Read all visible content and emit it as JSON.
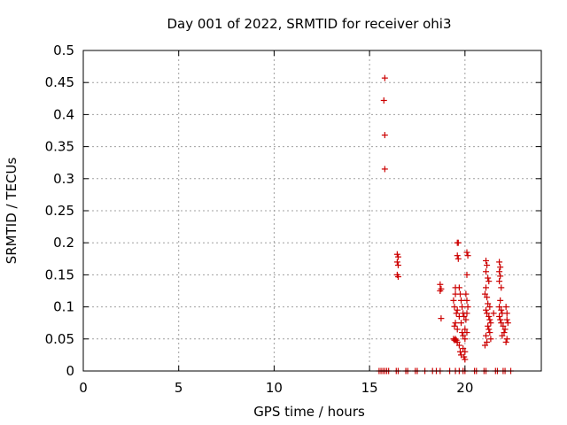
{
  "chart_data": {
    "type": "scatter",
    "title": "Day 001 of 2022, SRMTID for receiver ohi3",
    "xlabel": "GPS time / hours",
    "ylabel": "SRMTID / TECUs",
    "xlim": [
      0,
      24
    ],
    "ylim": [
      0,
      0.5
    ],
    "xticks": [
      0,
      5,
      10,
      15,
      20
    ],
    "xtick_labels": [
      "0",
      "5",
      "10",
      "15",
      "20"
    ],
    "yticks": [
      0,
      0.05,
      0.1,
      0.15,
      0.2,
      0.25,
      0.3,
      0.35,
      0.4,
      0.45,
      0.5
    ],
    "ytick_labels": [
      "0",
      "0.05",
      "0.1",
      "0.15",
      "0.2",
      "0.25",
      "0.3",
      "0.35",
      "0.4",
      "0.45",
      "0.5"
    ],
    "grid": true,
    "marker": "+",
    "color": "#cc0000",
    "series": [
      {
        "name": "SRMTID",
        "points": [
          [
            15.8,
            0.457
          ],
          [
            15.75,
            0.422
          ],
          [
            15.8,
            0.368
          ],
          [
            15.8,
            0.315
          ],
          [
            16.45,
            0.182
          ],
          [
            16.5,
            0.178
          ],
          [
            16.45,
            0.17
          ],
          [
            16.5,
            0.165
          ],
          [
            16.45,
            0.15
          ],
          [
            16.5,
            0.147
          ],
          [
            18.7,
            0.135
          ],
          [
            18.75,
            0.128
          ],
          [
            18.7,
            0.125
          ],
          [
            18.75,
            0.082
          ],
          [
            19.5,
            0.13
          ],
          [
            19.6,
            0.2
          ],
          [
            19.65,
            0.2
          ],
          [
            19.6,
            0.18
          ],
          [
            19.65,
            0.175
          ],
          [
            19.5,
            0.12
          ],
          [
            19.4,
            0.11
          ],
          [
            19.45,
            0.1
          ],
          [
            19.55,
            0.09
          ],
          [
            19.5,
            0.075
          ],
          [
            19.45,
            0.07
          ],
          [
            19.6,
            0.065
          ],
          [
            19.5,
            0.05
          ],
          [
            19.55,
            0.048
          ],
          [
            19.6,
            0.045
          ],
          [
            19.7,
            0.04
          ],
          [
            19.75,
            0.03
          ],
          [
            19.8,
            0.025
          ],
          [
            19.7,
            0.13
          ],
          [
            19.75,
            0.12
          ],
          [
            19.8,
            0.11
          ],
          [
            19.85,
            0.1
          ],
          [
            19.9,
            0.09
          ],
          [
            19.95,
            0.085
          ],
          [
            19.85,
            0.06
          ],
          [
            19.9,
            0.055
          ],
          [
            20.0,
            0.05
          ],
          [
            20.0,
            0.018
          ],
          [
            19.95,
            0.022
          ],
          [
            20.1,
            0.185
          ],
          [
            20.15,
            0.18
          ],
          [
            20.1,
            0.15
          ],
          [
            20.05,
            0.12
          ],
          [
            20.1,
            0.11
          ],
          [
            20.15,
            0.1
          ],
          [
            20.1,
            0.09
          ],
          [
            20.05,
            0.08
          ],
          [
            20.0,
            0.065
          ],
          [
            20.1,
            0.06
          ],
          [
            19.9,
            0.035
          ],
          [
            20.0,
            0.03
          ],
          [
            19.4,
            0.05
          ],
          [
            19.45,
            0.048
          ],
          [
            19.6,
            0.095
          ],
          [
            19.7,
            0.085
          ],
          [
            19.8,
            0.075
          ],
          [
            21.1,
            0.172
          ],
          [
            21.15,
            0.165
          ],
          [
            21.1,
            0.155
          ],
          [
            21.2,
            0.145
          ],
          [
            21.25,
            0.14
          ],
          [
            21.1,
            0.13
          ],
          [
            21.05,
            0.12
          ],
          [
            21.15,
            0.115
          ],
          [
            21.2,
            0.105
          ],
          [
            21.3,
            0.1
          ],
          [
            21.1,
            0.095
          ],
          [
            21.15,
            0.09
          ],
          [
            21.25,
            0.085
          ],
          [
            21.3,
            0.08
          ],
          [
            21.35,
            0.075
          ],
          [
            21.2,
            0.07
          ],
          [
            21.25,
            0.065
          ],
          [
            21.3,
            0.06
          ],
          [
            21.1,
            0.055
          ],
          [
            21.15,
            0.045
          ],
          [
            21.05,
            0.04
          ],
          [
            21.35,
            0.05
          ],
          [
            21.5,
            0.09
          ],
          [
            21.8,
            0.17
          ],
          [
            21.85,
            0.162
          ],
          [
            21.8,
            0.155
          ],
          [
            21.85,
            0.148
          ],
          [
            21.8,
            0.14
          ],
          [
            21.9,
            0.13
          ],
          [
            21.85,
            0.11
          ],
          [
            21.8,
            0.1
          ],
          [
            21.9,
            0.095
          ],
          [
            21.95,
            0.09
          ],
          [
            21.8,
            0.085
          ],
          [
            21.85,
            0.08
          ],
          [
            21.9,
            0.075
          ],
          [
            22.0,
            0.07
          ],
          [
            22.1,
            0.065
          ],
          [
            22.05,
            0.06
          ],
          [
            21.95,
            0.055
          ],
          [
            22.2,
            0.09
          ],
          [
            22.15,
            0.1
          ],
          [
            22.2,
            0.08
          ],
          [
            22.25,
            0.075
          ],
          [
            22.2,
            0.05
          ],
          [
            22.15,
            0.045
          ],
          [
            15.5,
            0.0
          ],
          [
            15.6,
            0.0
          ],
          [
            15.7,
            0.0
          ],
          [
            15.8,
            0.0
          ],
          [
            15.9,
            0.0
          ],
          [
            16.0,
            0.0
          ],
          [
            16.4,
            0.0
          ],
          [
            16.5,
            0.0
          ],
          [
            16.9,
            0.0
          ],
          [
            17.0,
            0.0
          ],
          [
            17.4,
            0.0
          ],
          [
            17.5,
            0.0
          ],
          [
            17.9,
            0.0
          ],
          [
            18.3,
            0.0
          ],
          [
            18.5,
            0.0
          ],
          [
            18.7,
            0.0
          ],
          [
            19.2,
            0.0
          ],
          [
            19.5,
            0.0
          ],
          [
            19.7,
            0.0
          ],
          [
            19.9,
            0.0
          ],
          [
            20.0,
            0.0
          ],
          [
            20.5,
            0.0
          ],
          [
            20.6,
            0.0
          ],
          [
            21.0,
            0.0
          ],
          [
            21.1,
            0.0
          ],
          [
            21.6,
            0.0
          ],
          [
            21.7,
            0.0
          ],
          [
            22.0,
            0.0
          ],
          [
            22.1,
            0.0
          ],
          [
            22.4,
            0.0
          ]
        ]
      }
    ]
  }
}
